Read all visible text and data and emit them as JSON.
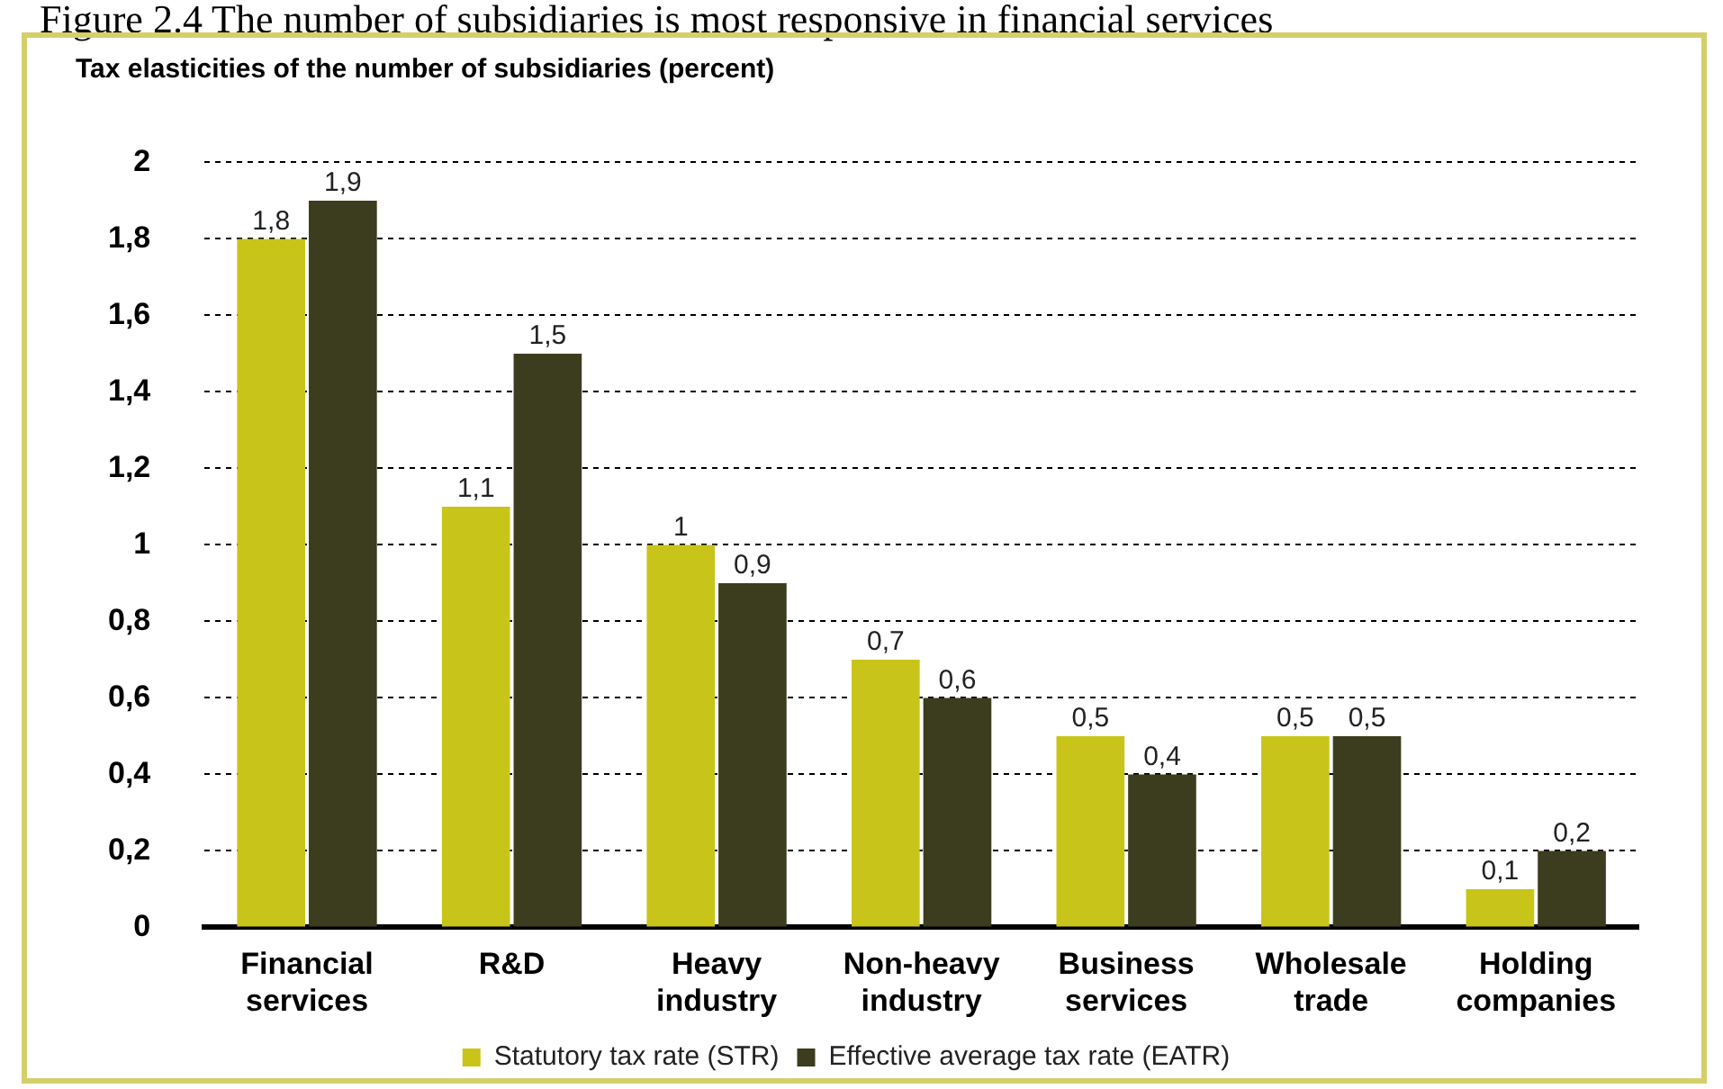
{
  "chart_data": {
    "type": "bar",
    "title": "Figure 2.4 The number of subsidiaries is most responsive in financial services",
    "ylabel": "Tax elasticities of the number of subsidiaries (percent)",
    "categories": [
      "Financial services",
      "R&D",
      "Heavy industry",
      "Non-heavy industry",
      "Business services",
      "Wholesale trade",
      "Holding companies"
    ],
    "series": [
      {
        "name": "Statutory tax rate (STR)",
        "color": "#c8c41a",
        "values": [
          1.8,
          1.1,
          1,
          0.7,
          0.5,
          0.5,
          0.1
        ],
        "value_labels": [
          "1,8",
          "1,1",
          "1",
          "0,7",
          "0,5",
          "0,5",
          "0,1"
        ]
      },
      {
        "name": "Effective average tax rate (EATR)",
        "color": "#3c3c1e",
        "values": [
          1.9,
          1.5,
          0.9,
          0.6,
          0.4,
          0.5,
          0.2
        ],
        "value_labels": [
          "1,9",
          "1,5",
          "0,9",
          "0,6",
          "0,4",
          "0,5",
          "0,2"
        ]
      }
    ],
    "ylim": [
      0,
      2
    ],
    "yticks": [
      0,
      {
        "value": 0.2,
        "label": "0,2"
      },
      {
        "value": 0.4,
        "label": "0,4"
      },
      {
        "value": 0.6,
        "label": "0,6"
      },
      {
        "value": 0.8,
        "label": "0,8"
      },
      1,
      {
        "value": 1.2,
        "label": "1,2"
      },
      {
        "value": 1.4,
        "label": "1,4"
      },
      {
        "value": 1.6,
        "label": "1,6"
      },
      {
        "value": 1.8,
        "label": "1,8"
      },
      2
    ],
    "grid": "y",
    "legend": "bottom"
  }
}
